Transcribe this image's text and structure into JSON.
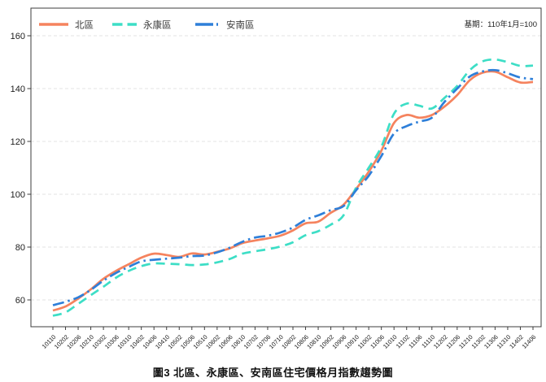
{
  "chart_data": {
    "type": "line",
    "title": "圖3 北區、永康區、安南區住宅價格月指數趨勢圖",
    "annotation": "基期：110年1月=100",
    "xlabel": "",
    "ylabel": "",
    "grid": "horizontal-dashed",
    "legend_position": "top-left-inside",
    "y_ticks": [
      60,
      80,
      100,
      120,
      140,
      160
    ],
    "ylim": [
      52,
      168
    ],
    "categories": [
      "10110",
      "10202",
      "10206",
      "10210",
      "10302",
      "10306",
      "10310",
      "10402",
      "10406",
      "10410",
      "10502",
      "10506",
      "10510",
      "10602",
      "10606",
      "10610",
      "10702",
      "10706",
      "10710",
      "10802",
      "10806",
      "10810",
      "10902",
      "10906",
      "10910",
      "11002",
      "11006",
      "11010",
      "11102",
      "11106",
      "11110",
      "11202",
      "11206",
      "11210",
      "11302",
      "11306",
      "11310",
      "11402",
      "11406"
    ],
    "series": [
      {
        "name": "北區",
        "color": "#F5835E",
        "style": "solid",
        "values": [
          56.0,
          57.5,
          60.5,
          64.0,
          68.0,
          71.0,
          73.5,
          76.0,
          77.5,
          77.0,
          76.3,
          77.6,
          77.2,
          78.2,
          79.5,
          81.5,
          82.5,
          83.3,
          84.3,
          86.3,
          89.0,
          89.6,
          93.0,
          96.0,
          102.0,
          108.5,
          116.5,
          127.0,
          130.0,
          129.0,
          130.0,
          133.2,
          137.5,
          143.2,
          146.0,
          146.4,
          144.3,
          142.3,
          142.5
        ]
      },
      {
        "name": "永康區",
        "color": "#3DDEC6",
        "style": "dashed",
        "values": [
          54.0,
          55.3,
          58.5,
          61.8,
          65.0,
          68.4,
          71.0,
          72.8,
          73.8,
          73.7,
          73.5,
          73.2,
          73.4,
          74.2,
          75.5,
          77.5,
          78.4,
          79.2,
          80.2,
          81.8,
          84.5,
          86.0,
          88.5,
          92.0,
          102.5,
          110.0,
          118.0,
          130.5,
          134.3,
          133.5,
          132.5,
          136.5,
          141.0,
          147.0,
          150.3,
          151.0,
          150.0,
          148.6,
          148.7
        ]
      },
      {
        "name": "安南區",
        "color": "#2E7FD9",
        "style": "dash-dot",
        "values": [
          58.0,
          59.3,
          61.0,
          63.8,
          67.3,
          70.2,
          72.5,
          74.6,
          75.2,
          75.6,
          76.0,
          76.6,
          76.8,
          78.0,
          79.8,
          82.0,
          83.6,
          84.3,
          85.5,
          87.4,
          90.3,
          92.0,
          94.0,
          95.5,
          101.5,
          107.0,
          114.5,
          123.0,
          125.8,
          127.5,
          129.0,
          135.0,
          140.0,
          144.6,
          146.5,
          147.0,
          145.8,
          144.2,
          143.6
        ]
      }
    ]
  }
}
